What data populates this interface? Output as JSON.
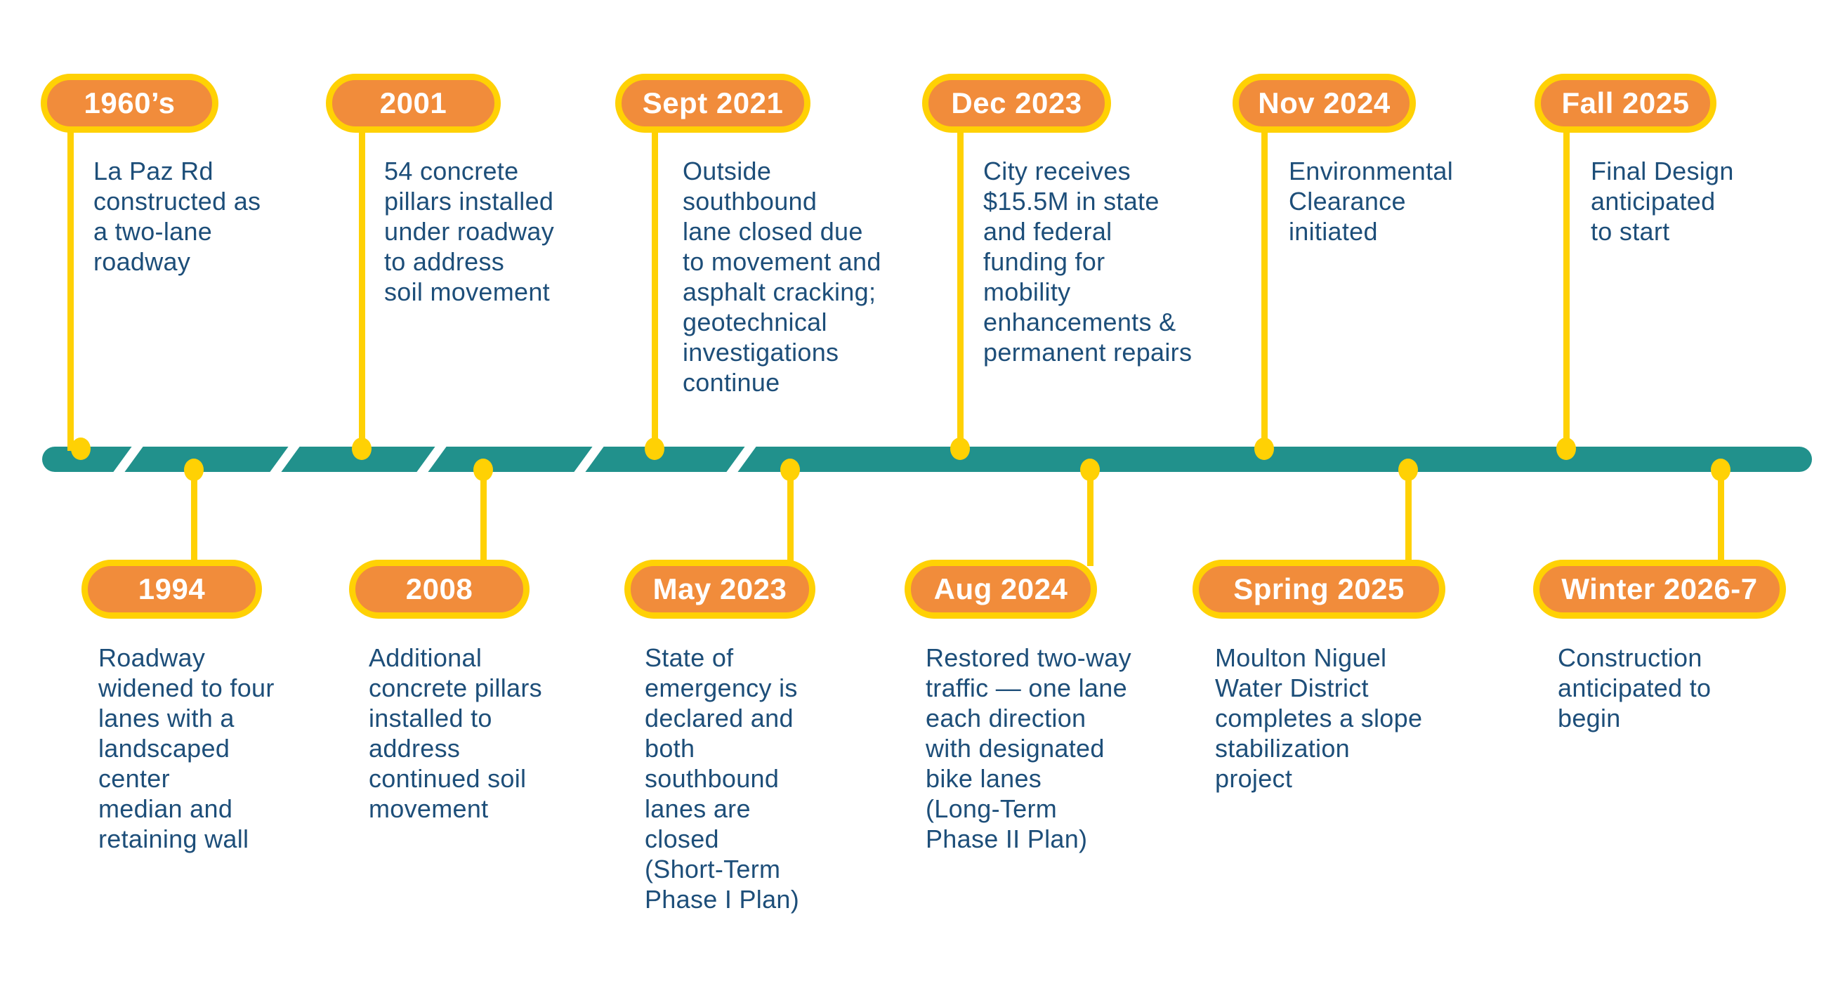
{
  "timeline": {
    "colors": {
      "bar_teal": "#21918C",
      "pill_orange": "#F18C3B",
      "accent_yellow": "#FFD104",
      "text_navy": "#1D4E79"
    },
    "events": [
      {
        "date": "1960’s",
        "row": "top",
        "description_lines": [
          "La Paz Rd",
          "constructed as",
          "a two-lane",
          "roadway"
        ]
      },
      {
        "date": "2001",
        "row": "top",
        "description_lines": [
          "54 concrete",
          "pillars installed",
          "under roadway",
          "to address",
          "soil movement"
        ]
      },
      {
        "date": "Sept 2021",
        "row": "top",
        "description_lines": [
          "Outside",
          "southbound",
          "lane closed due",
          "to movement and",
          "asphalt cracking;",
          "geotechnical",
          "investigations",
          "continue"
        ]
      },
      {
        "date": "Dec 2023",
        "row": "top",
        "description_lines": [
          "City receives",
          "$15.5M in state",
          "and federal",
          "funding for",
          "mobility",
          "enhancements &",
          "permanent repairs"
        ]
      },
      {
        "date": "Nov 2024",
        "row": "top",
        "description_lines": [
          "Environmental",
          "Clearance",
          "initiated"
        ]
      },
      {
        "date": "Fall 2025",
        "row": "top",
        "description_lines": [
          "Final Design",
          "anticipated",
          "to start"
        ]
      },
      {
        "date": "1994",
        "row": "bottom",
        "description_lines": [
          "Roadway",
          "widened to four",
          "lanes with a",
          "landscaped",
          "center",
          "median and",
          "retaining wall"
        ]
      },
      {
        "date": "2008",
        "row": "bottom",
        "description_lines": [
          "Additional",
          "concrete pillars",
          "installed to",
          "address",
          "continued soil",
          "movement"
        ]
      },
      {
        "date": "May 2023",
        "row": "bottom",
        "description_lines": [
          "State of",
          "emergency is",
          "declared and",
          "both",
          "southbound",
          "lanes are",
          "closed",
          "(Short-Term",
          "Phase I Plan)"
        ]
      },
      {
        "date": "Aug 2024",
        "row": "bottom",
        "description_lines": [
          "Restored two-way",
          "traffic — one lane",
          "each direction",
          "with designated",
          "bike lanes",
          "(Long-Term",
          "Phase II Plan)"
        ]
      },
      {
        "date": "Spring 2025",
        "row": "bottom",
        "description_lines": [
          "Moulton Niguel",
          "Water District",
          "completes a slope",
          "stabilization",
          "project"
        ]
      },
      {
        "date": "Winter 2026-7",
        "row": "bottom",
        "description_lines": [
          "Construction",
          "anticipated to",
          "begin"
        ]
      }
    ]
  }
}
